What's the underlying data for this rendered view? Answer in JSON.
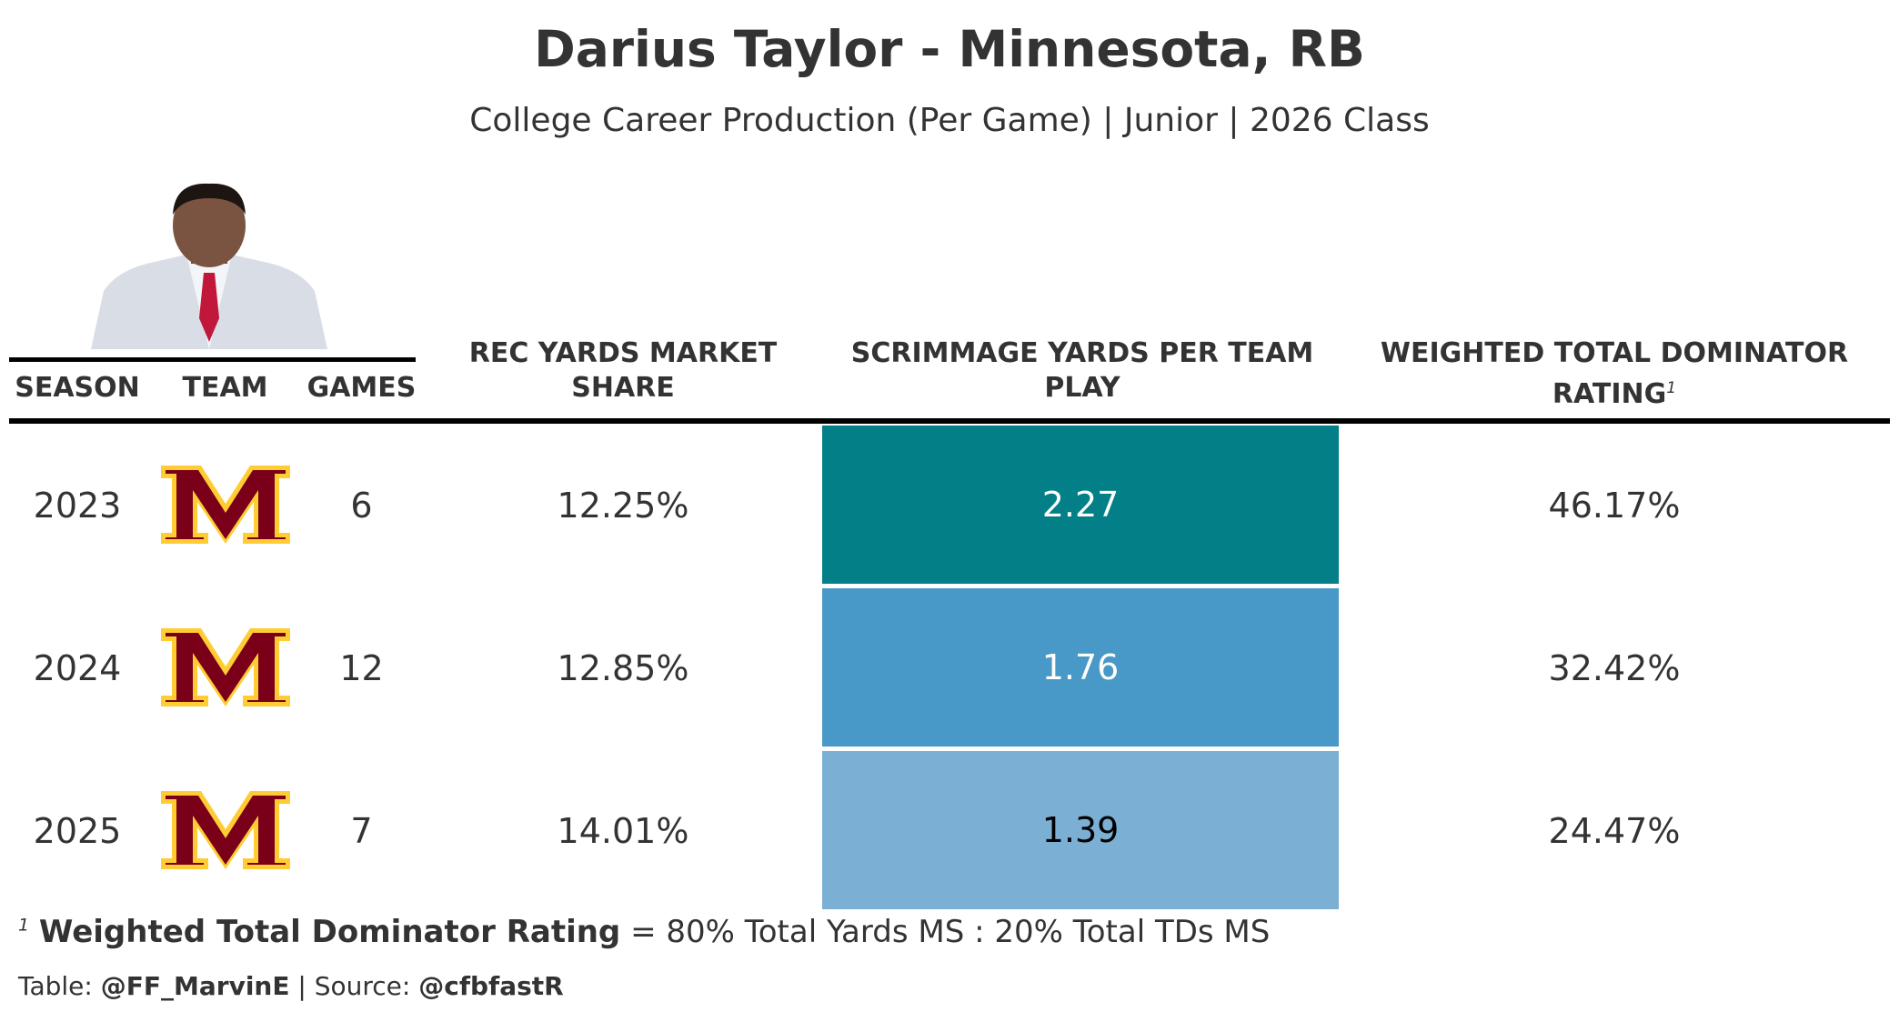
{
  "title": "Darius Taylor - Minnesota, RB",
  "subtitle": "College Career Production (Per Game) | Junior | 2026 Class",
  "colors": {
    "text": "#333333",
    "heat_high": "#027F87",
    "heat_mid": "#4899C7",
    "heat_low": "#7BAFD4",
    "logo_maroon": "#7A0019",
    "logo_gold": "#FFCC33"
  },
  "icons": {
    "headshot": "player-headshot",
    "team_logo": "minnesota-m-logo"
  },
  "chart_data": {
    "type": "table",
    "columns": {
      "season": "SEASON",
      "team": "TEAM",
      "games": "GAMES",
      "rec_share": "REC YARDS MARKET SHARE",
      "scrimmage_line1": "SCRIMMAGE YARDS PER TEAM",
      "scrimmage_line2": "PLAY",
      "dominator_line1": "WEIGHTED TOTAL DOMINATOR",
      "dominator_line2": "RATING",
      "dominator_note_marker": "1"
    },
    "rows": [
      {
        "season": "2023",
        "games": "6",
        "rec_share": "12.25%",
        "scrimmage": "2.27",
        "scrimmage_value": 2.27,
        "dominator": "46.17%"
      },
      {
        "season": "2024",
        "games": "12",
        "rec_share": "12.85%",
        "scrimmage": "1.76",
        "scrimmage_value": 1.76,
        "dominator": "32.42%"
      },
      {
        "season": "2025",
        "games": "7",
        "rec_share": "14.01%",
        "scrimmage": "1.39",
        "scrimmage_value": 1.39,
        "dominator": "24.47%"
      }
    ]
  },
  "footnote": {
    "marker": "1",
    "term": "Weighted Total Dominator Rating",
    "definition": " = 80% Total Yards MS : 20% Total TDs MS"
  },
  "credit": {
    "table_label": "Table: ",
    "table_author": "@FF_MarvinE",
    "separator": " | ",
    "source_label": "Source: ",
    "source_name": "@cfbfastR"
  }
}
